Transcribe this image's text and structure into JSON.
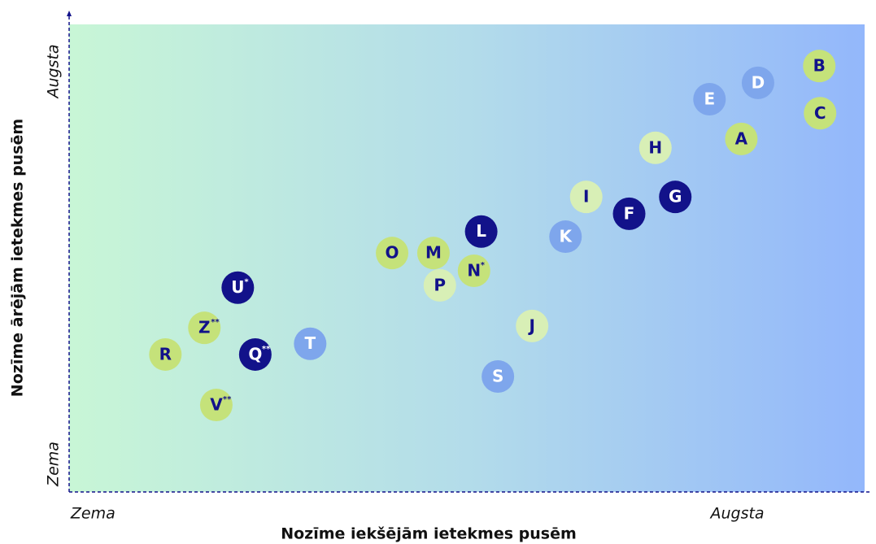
{
  "chart_data": {
    "type": "scatter",
    "xlabel": "Nozīme iekšējām ietekmes pusēm",
    "ylabel": "Nozīme ārējām ietekmes pusēm",
    "xlim": [
      0,
      100
    ],
    "ylim": [
      0,
      100
    ],
    "xticks": [
      {
        "value": 3,
        "label": "Zema"
      },
      {
        "value": 84,
        "label": "Augsta"
      }
    ],
    "yticks": [
      {
        "value": 6,
        "label": "Zema"
      },
      {
        "value": 90,
        "label": "Augsta"
      }
    ],
    "points": [
      {
        "label": "B",
        "x": 94.3,
        "y": 91.1,
        "color": "#c5e27a",
        "text_color": "#12128a"
      },
      {
        "label": "D",
        "x": 86.6,
        "y": 87.5,
        "color": "#7ea6ec",
        "text_color": "#ffffff"
      },
      {
        "label": "E",
        "x": 80.5,
        "y": 84.0,
        "color": "#7ea6ec",
        "text_color": "#ffffff"
      },
      {
        "label": "C",
        "x": 94.4,
        "y": 81.0,
        "color": "#c5e27a",
        "text_color": "#12128a"
      },
      {
        "label": "A",
        "x": 84.5,
        "y": 75.5,
        "color": "#c5e27a",
        "text_color": "#12128a"
      },
      {
        "label": "H",
        "x": 73.7,
        "y": 73.6,
        "color": "#d8efb6",
        "text_color": "#12128a"
      },
      {
        "label": "G",
        "x": 76.2,
        "y": 63.1,
        "color": "#12128a",
        "text_color": "#ffffff"
      },
      {
        "label": "I",
        "x": 65.0,
        "y": 63.1,
        "color": "#d8efb6",
        "text_color": "#12128a"
      },
      {
        "label": "F",
        "x": 70.4,
        "y": 59.5,
        "color": "#12128a",
        "text_color": "#ffffff"
      },
      {
        "label": "L",
        "x": 51.8,
        "y": 55.7,
        "color": "#12128a",
        "text_color": "#ffffff"
      },
      {
        "label": "K",
        "x": 62.4,
        "y": 54.6,
        "color": "#7ea6ec",
        "text_color": "#ffffff"
      },
      {
        "label": "O",
        "x": 40.6,
        "y": 51.1,
        "color": "#c5e27a",
        "text_color": "#12128a"
      },
      {
        "label": "M",
        "x": 45.8,
        "y": 51.1,
        "color": "#c5e27a",
        "text_color": "#12128a"
      },
      {
        "label": "N",
        "sup": "*",
        "x": 50.9,
        "y": 47.3,
        "color": "#c5e27a",
        "text_color": "#12128a"
      },
      {
        "label": "P",
        "x": 46.6,
        "y": 44.2,
        "color": "#d8efb6",
        "text_color": "#12128a"
      },
      {
        "label": "U",
        "sup": "*",
        "x": 21.2,
        "y": 43.7,
        "color": "#12128a",
        "text_color": "#ffffff"
      },
      {
        "label": "J",
        "x": 58.2,
        "y": 35.5,
        "color": "#d8efb6",
        "text_color": "#12128a"
      },
      {
        "label": "Z",
        "sup": "**",
        "x": 17.0,
        "y": 35.1,
        "color": "#c5e27a",
        "text_color": "#12128a"
      },
      {
        "label": "T",
        "x": 30.3,
        "y": 31.7,
        "color": "#7ea6ec",
        "text_color": "#ffffff"
      },
      {
        "label": "R",
        "x": 12.1,
        "y": 29.4,
        "color": "#c5e27a",
        "text_color": "#12128a"
      },
      {
        "label": "Q",
        "sup": "**",
        "x": 23.4,
        "y": 29.4,
        "color": "#12128a",
        "text_color": "#ffffff"
      },
      {
        "label": "S",
        "x": 53.9,
        "y": 24.7,
        "color": "#7ea6ec",
        "text_color": "#ffffff"
      },
      {
        "label": "V",
        "sup": "**",
        "x": 18.5,
        "y": 18.6,
        "color": "#c5e27a",
        "text_color": "#12128a"
      }
    ]
  }
}
